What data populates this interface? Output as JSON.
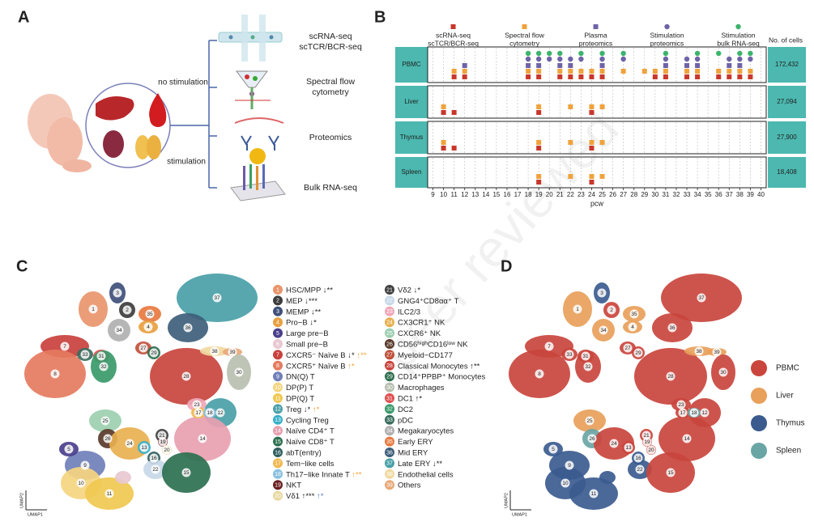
{
  "panel_labels": [
    "A",
    "B",
    "C",
    "D"
  ],
  "overview": {
    "conditions": [
      "no stimulation",
      "stimulation"
    ],
    "assays": [
      [
        "scRNA-seq",
        "scTCR/BCR-seq"
      ],
      [
        "Spectral flow",
        "cytometry"
      ],
      [
        "Proteomics"
      ],
      [
        "Bulk RNA-seq"
      ]
    ]
  },
  "chart_data": {
    "type": "dot",
    "series": [
      {
        "name": [
          "scRNA-seq",
          "scTCR/BCR-seq"
        ],
        "color": "#c9372c",
        "shape": "square"
      },
      {
        "name": [
          "Spectral flow",
          "cytometry"
        ],
        "color": "#f0a23c",
        "shape": "square"
      },
      {
        "name": [
          "Plasma",
          "proteomics"
        ],
        "color": "#6f63a8",
        "shape": "square"
      },
      {
        "name": [
          "Stimulation",
          "proteomics"
        ],
        "color": "#6f63a8",
        "shape": "circle"
      },
      {
        "name": [
          "Stimulation",
          "bulk RNA-seq"
        ],
        "color": "#3db36b",
        "shape": "circle"
      }
    ],
    "rows": [
      {
        "name": "PBMC",
        "cells": "172,432",
        "values": [
          [
            11,
            12,
            18,
            19,
            21,
            22,
            23,
            24,
            25,
            30,
            31,
            33,
            34,
            36,
            37,
            38,
            39
          ],
          [
            11,
            12,
            18,
            19,
            21,
            22,
            23,
            24,
            25,
            27,
            29,
            30,
            31,
            33,
            34,
            36,
            37,
            38,
            39
          ],
          [
            12,
            18,
            19,
            21,
            22,
            25,
            31,
            33,
            34,
            37,
            38
          ],
          [
            18,
            19,
            20,
            21,
            22,
            23,
            25,
            27,
            31,
            33,
            34,
            37,
            38,
            39
          ],
          [
            18,
            19,
            20,
            21,
            23,
            25,
            27,
            31,
            34,
            36,
            38,
            39
          ]
        ]
      },
      {
        "name": "Liver",
        "cells": "27,094",
        "values": [
          [
            10,
            11,
            19,
            24
          ],
          [
            10,
            19,
            22,
            24,
            25
          ],
          [],
          [],
          []
        ]
      },
      {
        "name": "Thymus",
        "cells": "27,900",
        "values": [
          [
            10,
            11,
            19,
            24
          ],
          [
            10,
            19,
            22,
            24,
            25
          ],
          [],
          [],
          []
        ]
      },
      {
        "name": "Spleen",
        "cells": "18,408",
        "values": [
          [
            19,
            24
          ],
          [
            19,
            22,
            24,
            25
          ],
          [],
          [],
          []
        ]
      }
    ],
    "xlim": [
      8.5,
      40.5
    ],
    "xticks": [
      9,
      10,
      11,
      12,
      13,
      14,
      15,
      16,
      17,
      18,
      19,
      20,
      21,
      22,
      23,
      24,
      25,
      26,
      27,
      28,
      29,
      30,
      31,
      32,
      33,
      34,
      35,
      36,
      37,
      38,
      39,
      40
    ],
    "xlabel": "pcw",
    "cells_header": "No. of cells",
    "grid": true
  },
  "umap_clusters": {
    "axis_labels": [
      "UMAP1",
      "UMAP2"
    ],
    "clusters": [
      {
        "id": "1",
        "name": "HSC/MPP",
        "color": "#e8956b",
        "marks": [
          {
            "text": "↓**",
            "color": "#222"
          }
        ]
      },
      {
        "id": "2",
        "name": "MEP",
        "color": "#3d3d3d",
        "marks": [
          {
            "text": "↓***",
            "color": "#222"
          }
        ]
      },
      {
        "id": "3",
        "name": "MEMP",
        "color": "#3e4f7a",
        "marks": [
          {
            "text": "↓**",
            "color": "#222"
          }
        ]
      },
      {
        "id": "4",
        "name": "Pro−B",
        "color": "#e8a040",
        "marks": [
          {
            "text": "↓*",
            "color": "#222"
          }
        ]
      },
      {
        "id": "5",
        "name": "Large pre−B",
        "color": "#4a3f8c",
        "marks": []
      },
      {
        "id": "6",
        "name": "Small pre−B",
        "color": "#e8c8d0",
        "marks": []
      },
      {
        "id": "7",
        "name": "CXCR5⁻ Naïve B",
        "color": "#c9413d",
        "marks": [
          {
            "text": "↓*",
            "color": "#222"
          },
          {
            "text": "↑**",
            "color": "#f0a23c"
          }
        ]
      },
      {
        "id": "8",
        "name": "CXCR5⁺ Naïve B",
        "color": "#e57b5f",
        "marks": [
          {
            "text": "↑*",
            "color": "#f0a23c"
          }
        ]
      },
      {
        "id": "9",
        "name": "DN(Q) T",
        "color": "#6f7fb8",
        "marks": []
      },
      {
        "id": "10",
        "name": "DP(P) T",
        "color": "#f5d580",
        "marks": []
      },
      {
        "id": "11",
        "name": "DP(Q) T",
        "color": "#f0c850",
        "marks": []
      },
      {
        "id": "12",
        "name": "Treg",
        "color": "#4aa0a8",
        "marks": [
          {
            "text": "↓*",
            "color": "#222"
          },
          {
            "text": "↑*",
            "color": "#f0a23c"
          }
        ]
      },
      {
        "id": "13",
        "name": "Cycling Treg",
        "color": "#39b0c8",
        "marks": []
      },
      {
        "id": "14",
        "name": "Naïve CD4⁺ T",
        "color": "#e8a0b0",
        "marks": []
      },
      {
        "id": "15",
        "name": "Naïve CD8⁺ T",
        "color": "#2d7050",
        "marks": []
      },
      {
        "id": "16",
        "name": "abT(entry)",
        "color": "#2f5d5d",
        "marks": []
      },
      {
        "id": "17",
        "name": "Tem−like cells",
        "color": "#f0b850",
        "marks": []
      },
      {
        "id": "18",
        "name": "Th17−like Innate T",
        "color": "#88c0e0",
        "marks": [
          {
            "text": "↑**",
            "color": "#f0a23c"
          }
        ]
      },
      {
        "id": "19",
        "name": "NKT",
        "color": "#6b2020",
        "marks": []
      },
      {
        "id": "20",
        "name": "Vδ1",
        "color": "#e8d8a0",
        "marks": [
          {
            "text": "↑***",
            "color": "#222"
          },
          {
            "text": "↑*",
            "color": "#5a7bb8"
          }
        ]
      },
      {
        "id": "21",
        "name": "Vδ2",
        "color": "#404040",
        "marks": [
          {
            "text": "↓*",
            "color": "#222"
          }
        ]
      },
      {
        "id": "22",
        "name": "GNG4⁺CD8αα⁺ T",
        "color": "#c8d8e8",
        "marks": []
      },
      {
        "id": "23",
        "name": "ILC2/3",
        "color": "#f0a8b8",
        "marks": []
      },
      {
        "id": "24",
        "name": "CX3CR1⁺ NK",
        "color": "#e8b050",
        "marks": []
      },
      {
        "id": "25",
        "name": "CXCR6⁺ NK",
        "color": "#9ccfb0",
        "marks": []
      },
      {
        "id": "26",
        "name": "CD56ʰⁱᵍʰCD16ˡᵒʷ NK",
        "color": "#5a3a2a",
        "marks": []
      },
      {
        "id": "27",
        "name": "Myeloid−CD177",
        "color": "#c0503a",
        "marks": []
      },
      {
        "id": "28",
        "name": "Classical Monocytes",
        "color": "#c8453d",
        "marks": [
          {
            "text": "↑**",
            "color": "#222"
          }
        ]
      },
      {
        "id": "29",
        "name": "CD14⁺PPBP⁺ Monocytes",
        "color": "#2e6e4e",
        "marks": []
      },
      {
        "id": "30",
        "name": "Macrophages",
        "color": "#b8c0b0",
        "marks": []
      },
      {
        "id": "31",
        "name": "DC1",
        "color": "#e05050",
        "marks": [
          {
            "text": "↑*",
            "color": "#222"
          }
        ]
      },
      {
        "id": "32",
        "name": "DC2",
        "color": "#3a9a6a",
        "marks": []
      },
      {
        "id": "33",
        "name": "pDC",
        "color": "#3a6e5e",
        "marks": []
      },
      {
        "id": "34",
        "name": "Megakaryocytes",
        "color": "#b0b0b0",
        "marks": []
      },
      {
        "id": "35",
        "name": "Early ERY",
        "color": "#e87a40",
        "marks": []
      },
      {
        "id": "36",
        "name": "Mid ERY",
        "color": "#3e5e7a",
        "marks": []
      },
      {
        "id": "37",
        "name": "Late ERY",
        "color": "#4aa0a8",
        "marks": [
          {
            "text": "↓**",
            "color": "#222"
          }
        ]
      },
      {
        "id": "38",
        "name": "Endothelial cells",
        "color": "#f0d8a0",
        "marks": []
      },
      {
        "id": "39",
        "name": "Others",
        "color": "#e8a878",
        "marks": []
      }
    ]
  },
  "umap_tissues": {
    "tissues": [
      {
        "name": "PBMC",
        "color": "#c9453d"
      },
      {
        "name": "Liver",
        "color": "#e8a05a"
      },
      {
        "name": "Thymus",
        "color": "#3b5b8f"
      },
      {
        "name": "Spleen",
        "color": "#6aa5a5"
      }
    ]
  },
  "watermark": "peer reviewed"
}
